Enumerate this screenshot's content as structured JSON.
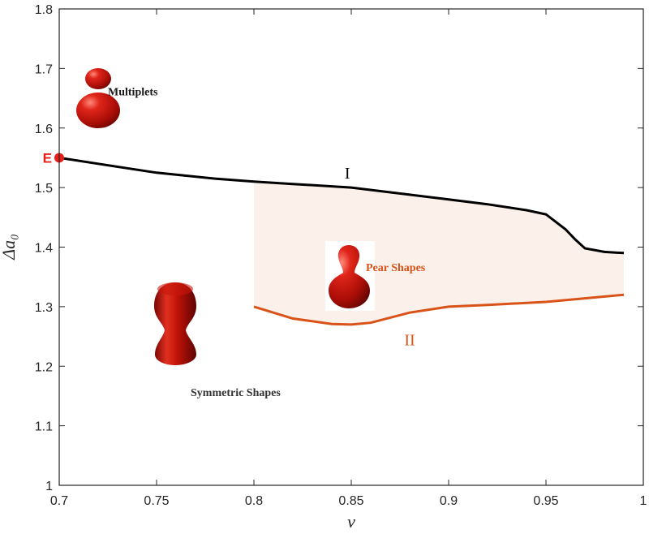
{
  "chart_data": {
    "type": "line",
    "xlabel": "v",
    "ylabel": "Δa₀",
    "xlim": [
      0.7,
      1.0
    ],
    "ylim": [
      1.0,
      1.8
    ],
    "xticks": [
      "0.7",
      "0.75",
      "0.8",
      "0.85",
      "0.9",
      "0.95",
      "1"
    ],
    "yticks": [
      "1",
      "1.1",
      "1.2",
      "1.3",
      "1.4",
      "1.5",
      "1.6",
      "1.7",
      "1.8"
    ],
    "grid": false,
    "series": [
      {
        "name": "I",
        "color": "#000000",
        "x": [
          0.7,
          0.72,
          0.75,
          0.78,
          0.8,
          0.82,
          0.85,
          0.88,
          0.9,
          0.92,
          0.94,
          0.95,
          0.96,
          0.965,
          0.97,
          0.98,
          0.99
        ],
        "y": [
          1.55,
          1.54,
          1.525,
          1.515,
          1.51,
          1.506,
          1.5,
          1.488,
          1.48,
          1.472,
          1.462,
          1.455,
          1.43,
          1.413,
          1.398,
          1.392,
          1.39
        ]
      },
      {
        "name": "II",
        "color": "#D95319",
        "x": [
          0.8,
          0.82,
          0.84,
          0.85,
          0.86,
          0.88,
          0.9,
          0.92,
          0.95,
          0.97,
          0.99
        ],
        "y": [
          1.3,
          1.28,
          1.271,
          1.27,
          1.273,
          1.29,
          1.3,
          1.303,
          1.308,
          1.314,
          1.32
        ]
      }
    ],
    "shaded_region": {
      "between": [
        "I",
        "II"
      ],
      "x_from": 0.8,
      "x_to": 0.99,
      "color": "#FBF1EA"
    },
    "point": {
      "label": "E",
      "x": 0.7,
      "y": 1.55,
      "color": "#E8201A"
    },
    "annotations": [
      {
        "text": "Multiplets",
        "x": 0.725,
        "y": 1.655,
        "color": "#1a1a1a"
      },
      {
        "text": "Pear Shapes",
        "x": 0.8575,
        "y": 1.36,
        "color": "#D95319"
      },
      {
        "text": "Symmetric Shapes",
        "x": 0.7675,
        "y": 1.15,
        "color": "#333333"
      }
    ],
    "shape_icons": [
      "multiplet-drops",
      "pear-shape",
      "symmetric-shape"
    ]
  }
}
